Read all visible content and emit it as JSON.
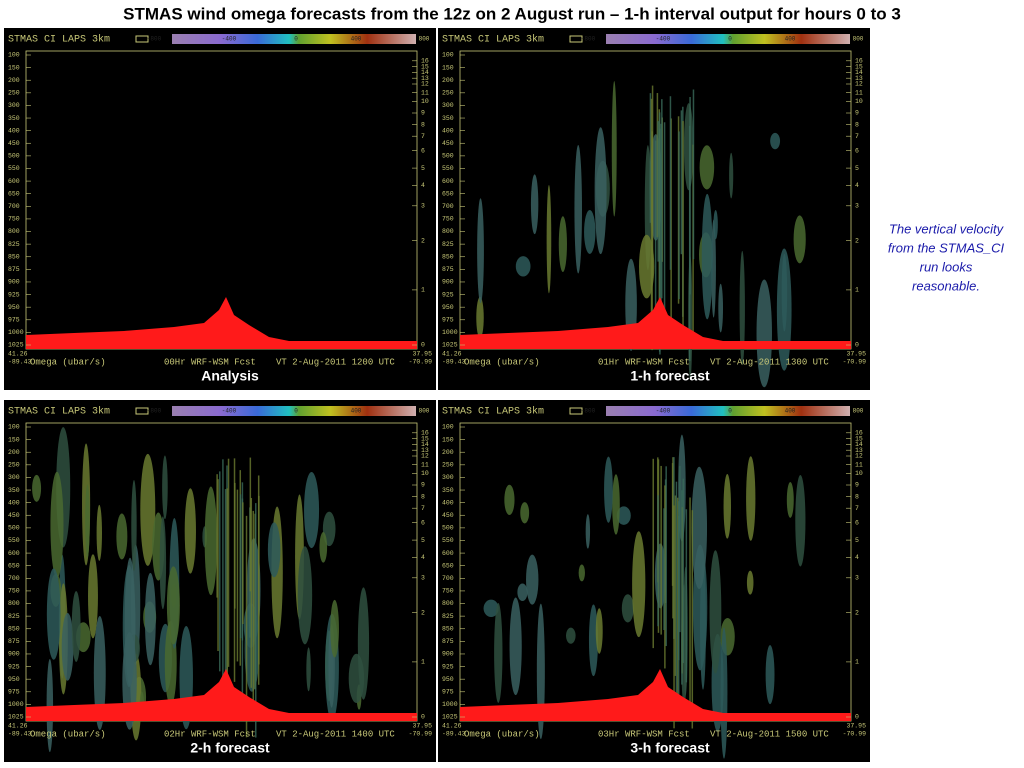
{
  "title": "STMAS wind omega forecasts from the 12z on 2 August run – 1-h interval output for hours 0 to 3",
  "panel_axes": {
    "header": "STMAS CI LAPS   3km",
    "colorbar_labels": [
      -800,
      -400,
      0,
      400,
      800
    ],
    "pressure_labels": [
      100,
      150,
      200,
      250,
      300,
      350,
      400,
      450,
      500,
      550,
      600,
      650,
      700,
      750,
      800,
      825,
      850,
      875,
      900,
      925,
      950,
      975,
      1000,
      1025
    ],
    "height_labels": [
      16,
      15,
      14,
      13,
      12,
      11,
      10,
      9,
      8,
      7,
      6,
      5,
      4,
      3,
      2,
      1,
      0
    ],
    "footer_quantity": "Omega (ubar/s)",
    "left_coords": [
      "41.26",
      "-89.43"
    ],
    "right_coords": [
      "37.95",
      "-70.99"
    ]
  },
  "panels": [
    {
      "forecast": "00Hr WRF-WSM Fcst",
      "valid": "VT   2-Aug-2011 1200 UTC",
      "caption": "Analysis"
    },
    {
      "forecast": "01Hr WRF-WSM Fcst",
      "valid": "VT   2-Aug-2011 1300 UTC",
      "caption": "1-h forecast"
    },
    {
      "forecast": "02Hr WRF-WSM Fcst",
      "valid": "VT   2-Aug-2011 1400 UTC",
      "caption": "2-h forecast"
    },
    {
      "forecast": "03Hr WRF-WSM Fcst",
      "valid": "VT   2-Aug-2011 1500 UTC",
      "caption": "3-h forecast"
    }
  ],
  "note": [
    "The vertical velocity",
    "from the STMAS_CI",
    "run looks",
    "reasonable."
  ]
}
